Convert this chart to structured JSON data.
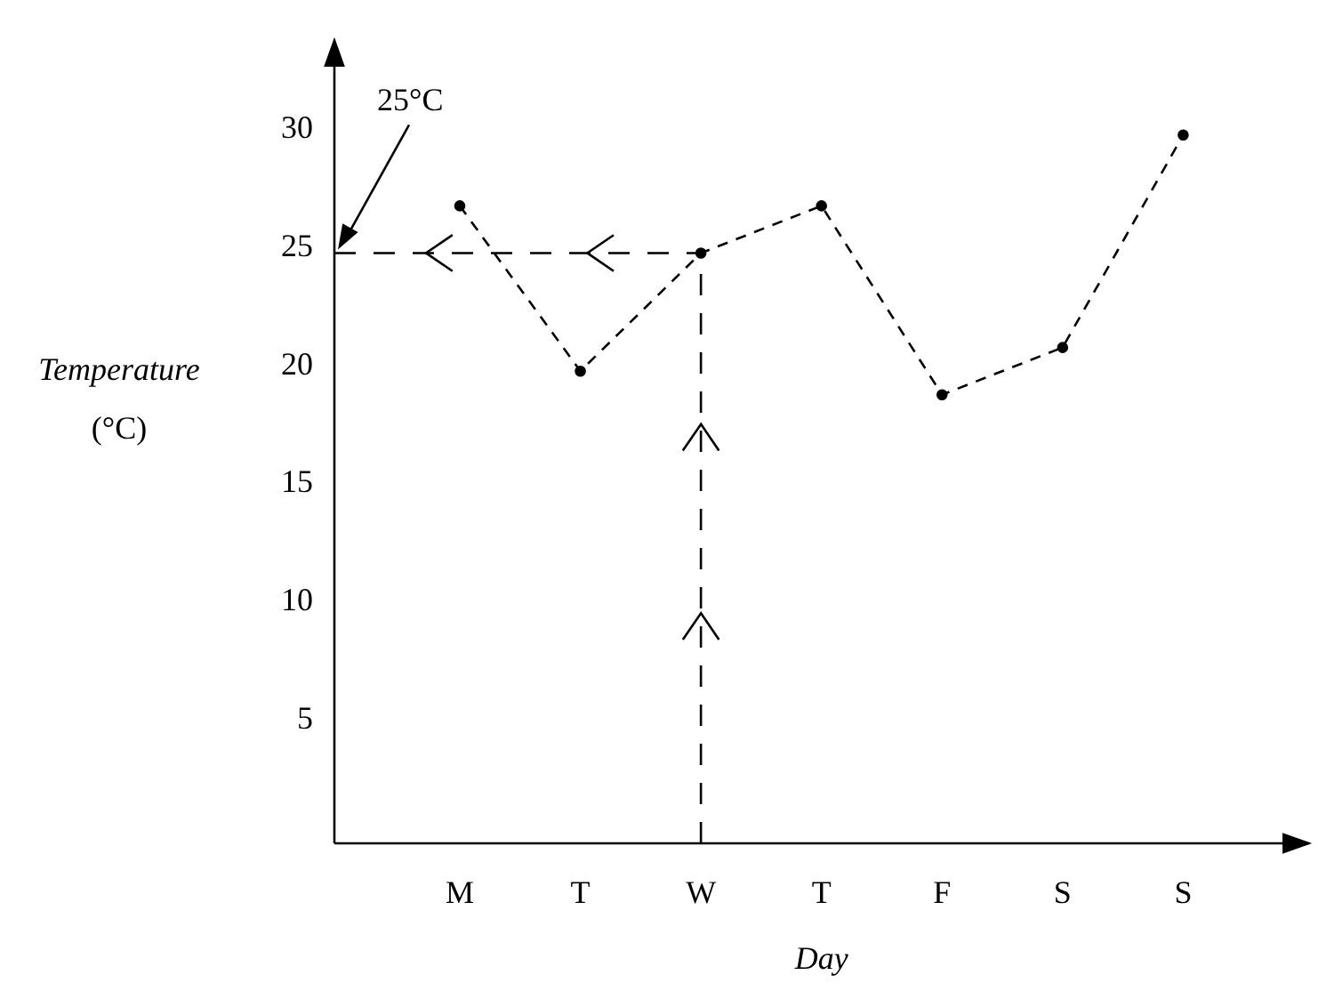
{
  "chart_data": {
    "type": "line",
    "xlabel": "Day",
    "ylabel": "Temperature (°C)",
    "categories": [
      "M",
      "T",
      "W",
      "T",
      "F",
      "S",
      "S"
    ],
    "values": [
      27,
      20,
      25,
      27,
      19,
      21,
      30
    ],
    "color": "#000000",
    "marker": "circle",
    "line_style": "dashed",
    "ylim": [
      0,
      34
    ],
    "yticks": [
      5,
      10,
      15,
      20,
      25,
      30
    ],
    "grid": false,
    "legend": false,
    "ref_lines": [
      {
        "axis": "y",
        "value": 25,
        "label": "25°C",
        "line_style": "dashed",
        "color": "#000000"
      },
      {
        "axis": "x",
        "value": "W",
        "line_style": "dashed",
        "color": "#000000"
      }
    ]
  }
}
